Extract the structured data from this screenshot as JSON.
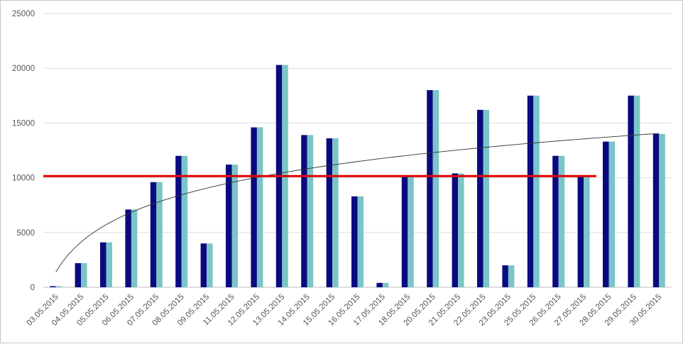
{
  "chart_data": {
    "type": "bar",
    "title": "",
    "xlabel": "",
    "ylabel": "",
    "ylim": [
      0,
      25000
    ],
    "yticks": [
      0,
      5000,
      10000,
      15000,
      20000,
      25000
    ],
    "grid": "horizontal",
    "legend": "none",
    "categories": [
      "03.05.2015",
      "04.05.2015",
      "05.05.2015",
      "06.05.2015",
      "07.05.2015",
      "08.05.2015",
      "09.05.2015",
      "11.05.2015",
      "12.05.2015",
      "13.05.2015",
      "14.05.2015",
      "15.05.2015",
      "16.05.2015",
      "17.05.2015",
      "18.05.2015",
      "20.05.2015",
      "21.05.2015",
      "22.05.2015",
      "23.05.2015",
      "25.05.2015",
      "26.05.2015",
      "27.05.2015",
      "28.05.2015",
      "29.05.2015",
      "30.05.2015"
    ],
    "series": [
      {
        "color": "#0a0a80",
        "values": [
          100,
          2200,
          4100,
          7100,
          9600,
          12000,
          4000,
          11200,
          14600,
          20300,
          13900,
          13600,
          8300,
          400,
          10100,
          18000,
          10400,
          16200,
          2000,
          17500,
          12000,
          10100,
          13300,
          17500,
          14000
        ]
      },
      {
        "color": "#7ac5c8",
        "values": [
          100,
          2200,
          4100,
          7100,
          9600,
          12000,
          4000,
          11200,
          14600,
          20300,
          13900,
          13600,
          8300,
          400,
          10100,
          18000,
          10400,
          16200,
          2000,
          17500,
          12000,
          10100,
          13300,
          17500,
          14000
        ]
      }
    ],
    "trendline": {
      "type": "logarithmic",
      "color": "#333333",
      "start": 1400,
      "end": 14050
    },
    "reference_line": {
      "value": 10150,
      "color": "#e00000",
      "from_category": "03.05.2015",
      "to_category": "27.05.2015"
    }
  }
}
